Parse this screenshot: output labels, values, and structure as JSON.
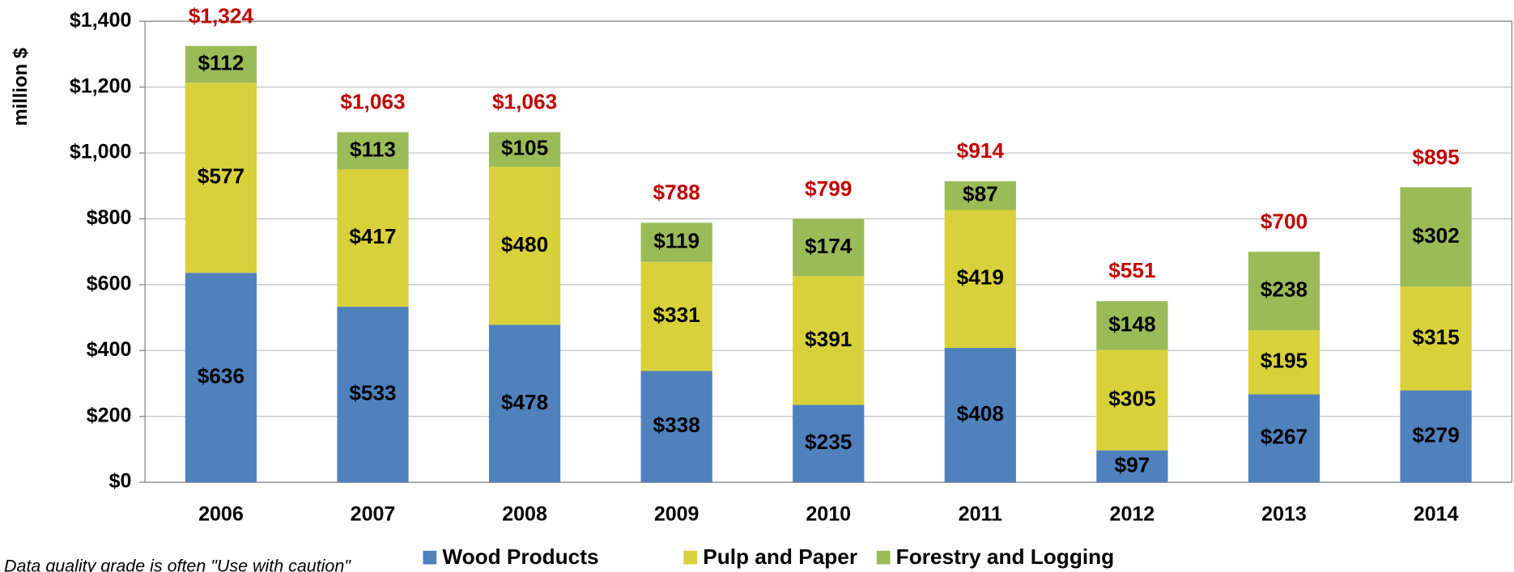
{
  "chart_data": {
    "type": "stacked_bar",
    "y_label": "million $",
    "categories": [
      "2006",
      "2007",
      "2008",
      "2009",
      "2010",
      "2011",
      "2012",
      "2013",
      "2014"
    ],
    "series": [
      {
        "name": "Wood Products",
        "color": "#4f81bd",
        "values": [
          636,
          533,
          478,
          338,
          235,
          408,
          97,
          267,
          279
        ],
        "value_labels": [
          "$636",
          "$533",
          "$478",
          "$338",
          "$235",
          "$408",
          "$97",
          "$267",
          "$279"
        ]
      },
      {
        "name": "Pulp and Paper",
        "color": "#d9d13b",
        "values": [
          577,
          417,
          480,
          331,
          391,
          419,
          305,
          195,
          315
        ],
        "value_labels": [
          "$577",
          "$417",
          "$480",
          "$331",
          "$391",
          "$419",
          "$305",
          "$195",
          "$315"
        ]
      },
      {
        "name": "Forestry and Logging",
        "color": "#9bbb59",
        "values": [
          112,
          113,
          105,
          119,
          174,
          87,
          148,
          238,
          302
        ],
        "value_labels": [
          "$112",
          "$113",
          "$105",
          "$119",
          "$174",
          "$87",
          "$148",
          "$238",
          "$302"
        ]
      }
    ],
    "totals": [
      1324,
      1063,
      1063,
      788,
      799,
      914,
      551,
      700,
      895
    ],
    "total_labels": [
      "$1,324",
      "$1,063",
      "$1,063",
      "$788",
      "$799",
      "$914",
      "$551",
      "$700",
      "$895"
    ],
    "total_color": "#c00000",
    "ylim": [
      0,
      1400
    ],
    "yticks": [
      {
        "value": 0,
        "label": "$0"
      },
      {
        "value": 200,
        "label": "$200"
      },
      {
        "value": 400,
        "label": "$400"
      },
      {
        "value": 600,
        "label": "$600"
      },
      {
        "value": 800,
        "label": "$800"
      },
      {
        "value": 1000,
        "label": "$1,000"
      },
      {
        "value": 1200,
        "label": "$1,200"
      },
      {
        "value": 1400,
        "label": "$1,400"
      }
    ],
    "grid": true,
    "legend": "bottom",
    "note": "Data quality grade is often \"Use with caution\""
  }
}
